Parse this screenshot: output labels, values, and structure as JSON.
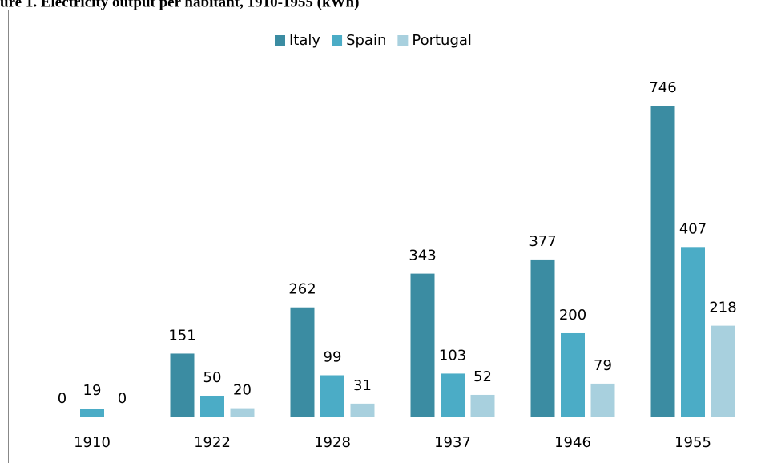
{
  "chart_data": {
    "type": "bar",
    "title": "ure 1. Electricity output per habitant, 1910-1955 (kWh)",
    "categories": [
      "1910",
      "1922",
      "1928",
      "1937",
      "1946",
      "1955"
    ],
    "series": [
      {
        "name": "Italy",
        "color": "#3b8ca2",
        "values": [
          0,
          151,
          262,
          343,
          377,
          746
        ]
      },
      {
        "name": "Spain",
        "color": "#4bacc6",
        "values": [
          19,
          50,
          99,
          103,
          200,
          407
        ]
      },
      {
        "name": "Portugal",
        "color": "#a8d0de",
        "values": [
          0,
          20,
          31,
          52,
          79,
          218
        ]
      }
    ],
    "legend": "top"
  }
}
